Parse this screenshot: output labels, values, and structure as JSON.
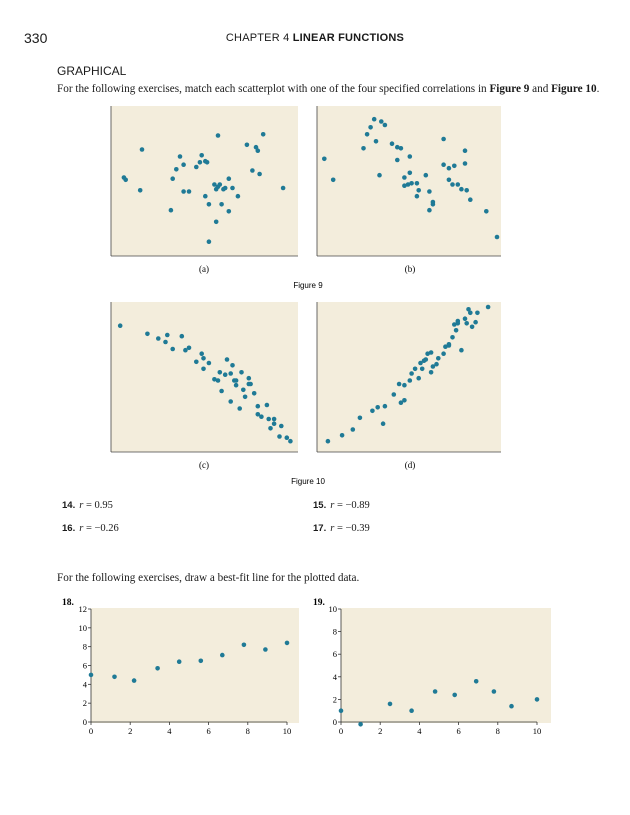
{
  "header": {
    "page_number": "330",
    "chapter": "CHAPTER 4",
    "chapter_title": "LINEAR FUNCTIONS"
  },
  "section_title": "GRAPHICAL",
  "instructions": {
    "match_prefix": "For the following exercises, match each scatterplot with one of the four specified correlations in ",
    "fig9": "Figure 9",
    "and": " and ",
    "fig10": "Figure 10",
    "period": ".",
    "bestfit": "For the following exercises, draw a best-fit line for the plotted data."
  },
  "colors": {
    "plot_bg": "#f3eddc",
    "dot": "#1f7a96"
  },
  "figure9": {
    "caption": "Figure 9",
    "panels": [
      {
        "label": "(a)",
        "points": [
          [
            6,
            63
          ],
          [
            7,
            61
          ],
          [
            15,
            52
          ],
          [
            16,
            87
          ],
          [
            32,
            35
          ],
          [
            33,
            62
          ],
          [
            35,
            70
          ],
          [
            37,
            81
          ],
          [
            39,
            74
          ],
          [
            39,
            51
          ],
          [
            42,
            51
          ],
          [
            46,
            72
          ],
          [
            48,
            76
          ],
          [
            49,
            82
          ],
          [
            51,
            77
          ],
          [
            51,
            47
          ],
          [
            52,
            76
          ],
          [
            53,
            40
          ],
          [
            53,
            8
          ],
          [
            56,
            57
          ],
          [
            57,
            53
          ],
          [
            58,
            55
          ],
          [
            57,
            25
          ],
          [
            59,
            57
          ],
          [
            58,
            99
          ],
          [
            60,
            40
          ],
          [
            61,
            53
          ],
          [
            62,
            54
          ],
          [
            64,
            62
          ],
          [
            64,
            34
          ],
          [
            66,
            54
          ],
          [
            69,
            47
          ],
          [
            74,
            91
          ],
          [
            77,
            69
          ],
          [
            79,
            89
          ],
          [
            80,
            86
          ],
          [
            81,
            66
          ],
          [
            83,
            100
          ],
          [
            94,
            54
          ]
        ]
      },
      {
        "label": "(b)",
        "points": [
          [
            3,
            79
          ],
          [
            8,
            61
          ],
          [
            25,
            88
          ],
          [
            27,
            100
          ],
          [
            29,
            106
          ],
          [
            31,
            113
          ],
          [
            32,
            94
          ],
          [
            35,
            111
          ],
          [
            34,
            65
          ],
          [
            37,
            108
          ],
          [
            41,
            92
          ],
          [
            44,
            89
          ],
          [
            44,
            78
          ],
          [
            46,
            88
          ],
          [
            48,
            63
          ],
          [
            48,
            56
          ],
          [
            50,
            57
          ],
          [
            51,
            67
          ],
          [
            51,
            81
          ],
          [
            52,
            58
          ],
          [
            55,
            58
          ],
          [
            55,
            47
          ],
          [
            56,
            52
          ],
          [
            60,
            65
          ],
          [
            62,
            51
          ],
          [
            64,
            42
          ],
          [
            62,
            35
          ],
          [
            64,
            40
          ],
          [
            70,
            74
          ],
          [
            70,
            96
          ],
          [
            73,
            71
          ],
          [
            73,
            61
          ],
          [
            75,
            57
          ],
          [
            76,
            73
          ],
          [
            78,
            57
          ],
          [
            80,
            53
          ],
          [
            82,
            86
          ],
          [
            82,
            75
          ],
          [
            83,
            52
          ],
          [
            85,
            44
          ],
          [
            94,
            34
          ],
          [
            100,
            12
          ]
        ]
      }
    ]
  },
  "figure10": {
    "caption": "Figure 10",
    "panels": [
      {
        "label": "(c)",
        "points": [
          [
            4,
            104
          ],
          [
            19,
            97
          ],
          [
            25,
            93
          ],
          [
            29,
            90
          ],
          [
            30,
            96
          ],
          [
            33,
            84
          ],
          [
            38,
            95
          ],
          [
            40,
            83
          ],
          [
            42,
            85
          ],
          [
            46,
            73
          ],
          [
            49,
            80
          ],
          [
            50,
            76
          ],
          [
            50,
            67
          ],
          [
            53,
            72
          ],
          [
            56,
            58
          ],
          [
            58,
            57
          ],
          [
            59,
            64
          ],
          [
            60,
            48
          ],
          [
            62,
            62
          ],
          [
            63,
            75
          ],
          [
            65,
            63
          ],
          [
            65,
            39
          ],
          [
            66,
            70
          ],
          [
            67,
            57
          ],
          [
            68,
            57
          ],
          [
            68,
            53
          ],
          [
            70,
            33
          ],
          [
            71,
            64
          ],
          [
            72,
            49
          ],
          [
            73,
            43
          ],
          [
            75,
            54
          ],
          [
            75,
            59
          ],
          [
            76,
            54
          ],
          [
            78,
            46
          ],
          [
            80,
            35
          ],
          [
            80,
            28
          ],
          [
            82,
            26
          ],
          [
            85,
            36
          ],
          [
            86,
            24
          ],
          [
            87,
            16
          ],
          [
            89,
            20
          ],
          [
            89,
            24
          ],
          [
            92,
            9
          ],
          [
            93,
            18
          ],
          [
            96,
            8
          ],
          [
            98,
            5
          ]
        ]
      },
      {
        "label": "(d)",
        "points": [
          [
            5,
            5
          ],
          [
            13,
            10
          ],
          [
            19,
            15
          ],
          [
            23,
            25
          ],
          [
            30,
            31
          ],
          [
            33,
            34
          ],
          [
            36,
            20
          ],
          [
            37,
            35
          ],
          [
            42,
            45
          ],
          [
            45,
            54
          ],
          [
            46,
            38
          ],
          [
            48,
            40
          ],
          [
            48,
            53
          ],
          [
            51,
            57
          ],
          [
            52,
            63
          ],
          [
            54,
            67
          ],
          [
            56,
            59
          ],
          [
            57,
            72
          ],
          [
            58,
            67
          ],
          [
            59,
            74
          ],
          [
            60,
            75
          ],
          [
            61,
            80
          ],
          [
            63,
            64
          ],
          [
            63,
            81
          ],
          [
            64,
            69
          ],
          [
            66,
            71
          ],
          [
            67,
            76
          ],
          [
            70,
            80
          ],
          [
            71,
            86
          ],
          [
            73,
            87
          ],
          [
            73,
            88
          ],
          [
            75,
            94
          ],
          [
            76,
            105
          ],
          [
            77,
            100
          ],
          [
            78,
            108
          ],
          [
            78,
            106
          ],
          [
            80,
            83
          ],
          [
            82,
            110
          ],
          [
            83,
            106
          ],
          [
            84,
            118
          ],
          [
            85,
            115
          ],
          [
            86,
            103
          ],
          [
            88,
            107
          ],
          [
            89,
            115
          ],
          [
            95,
            120
          ]
        ]
      }
    ]
  },
  "exercises": [
    {
      "num": "14.",
      "eq": "= 0.95"
    },
    {
      "num": "15.",
      "eq": "= −0.89"
    },
    {
      "num": "16.",
      "eq": "= −0.26"
    },
    {
      "num": "17.",
      "eq": "= −0.39"
    }
  ],
  "chart_data": [
    {
      "type": "scatter",
      "label": "18.",
      "title": "",
      "xlabel": "",
      "ylabel": "",
      "x": [
        0,
        1.2,
        2.2,
        3.4,
        4.5,
        5.6,
        6.7,
        7.8,
        8.9,
        10
      ],
      "y": [
        5.0,
        4.8,
        4.4,
        5.7,
        6.4,
        6.5,
        7.1,
        8.2,
        7.7,
        8.4
      ],
      "xlim": [
        0,
        10
      ],
      "ylim": [
        0,
        12
      ],
      "xticks": [
        0,
        2,
        4,
        6,
        8,
        10
      ],
      "yticks": [
        0,
        2,
        4,
        6,
        8,
        10,
        12
      ],
      "grid": false
    },
    {
      "type": "scatter",
      "label": "19.",
      "title": "",
      "xlabel": "",
      "ylabel": "",
      "x": [
        0,
        1,
        2.5,
        3.6,
        4.8,
        5.8,
        6.9,
        7.8,
        8.7,
        10
      ],
      "y": [
        1.0,
        -0.2,
        1.6,
        1.0,
        2.7,
        2.4,
        3.6,
        2.7,
        1.4,
        2.0
      ],
      "xlim": [
        0,
        10
      ],
      "ylim": [
        0,
        10
      ],
      "xticks": [
        0,
        2,
        4,
        6,
        8,
        10
      ],
      "yticks": [
        0,
        2,
        4,
        6,
        8,
        10
      ],
      "grid": false
    }
  ]
}
